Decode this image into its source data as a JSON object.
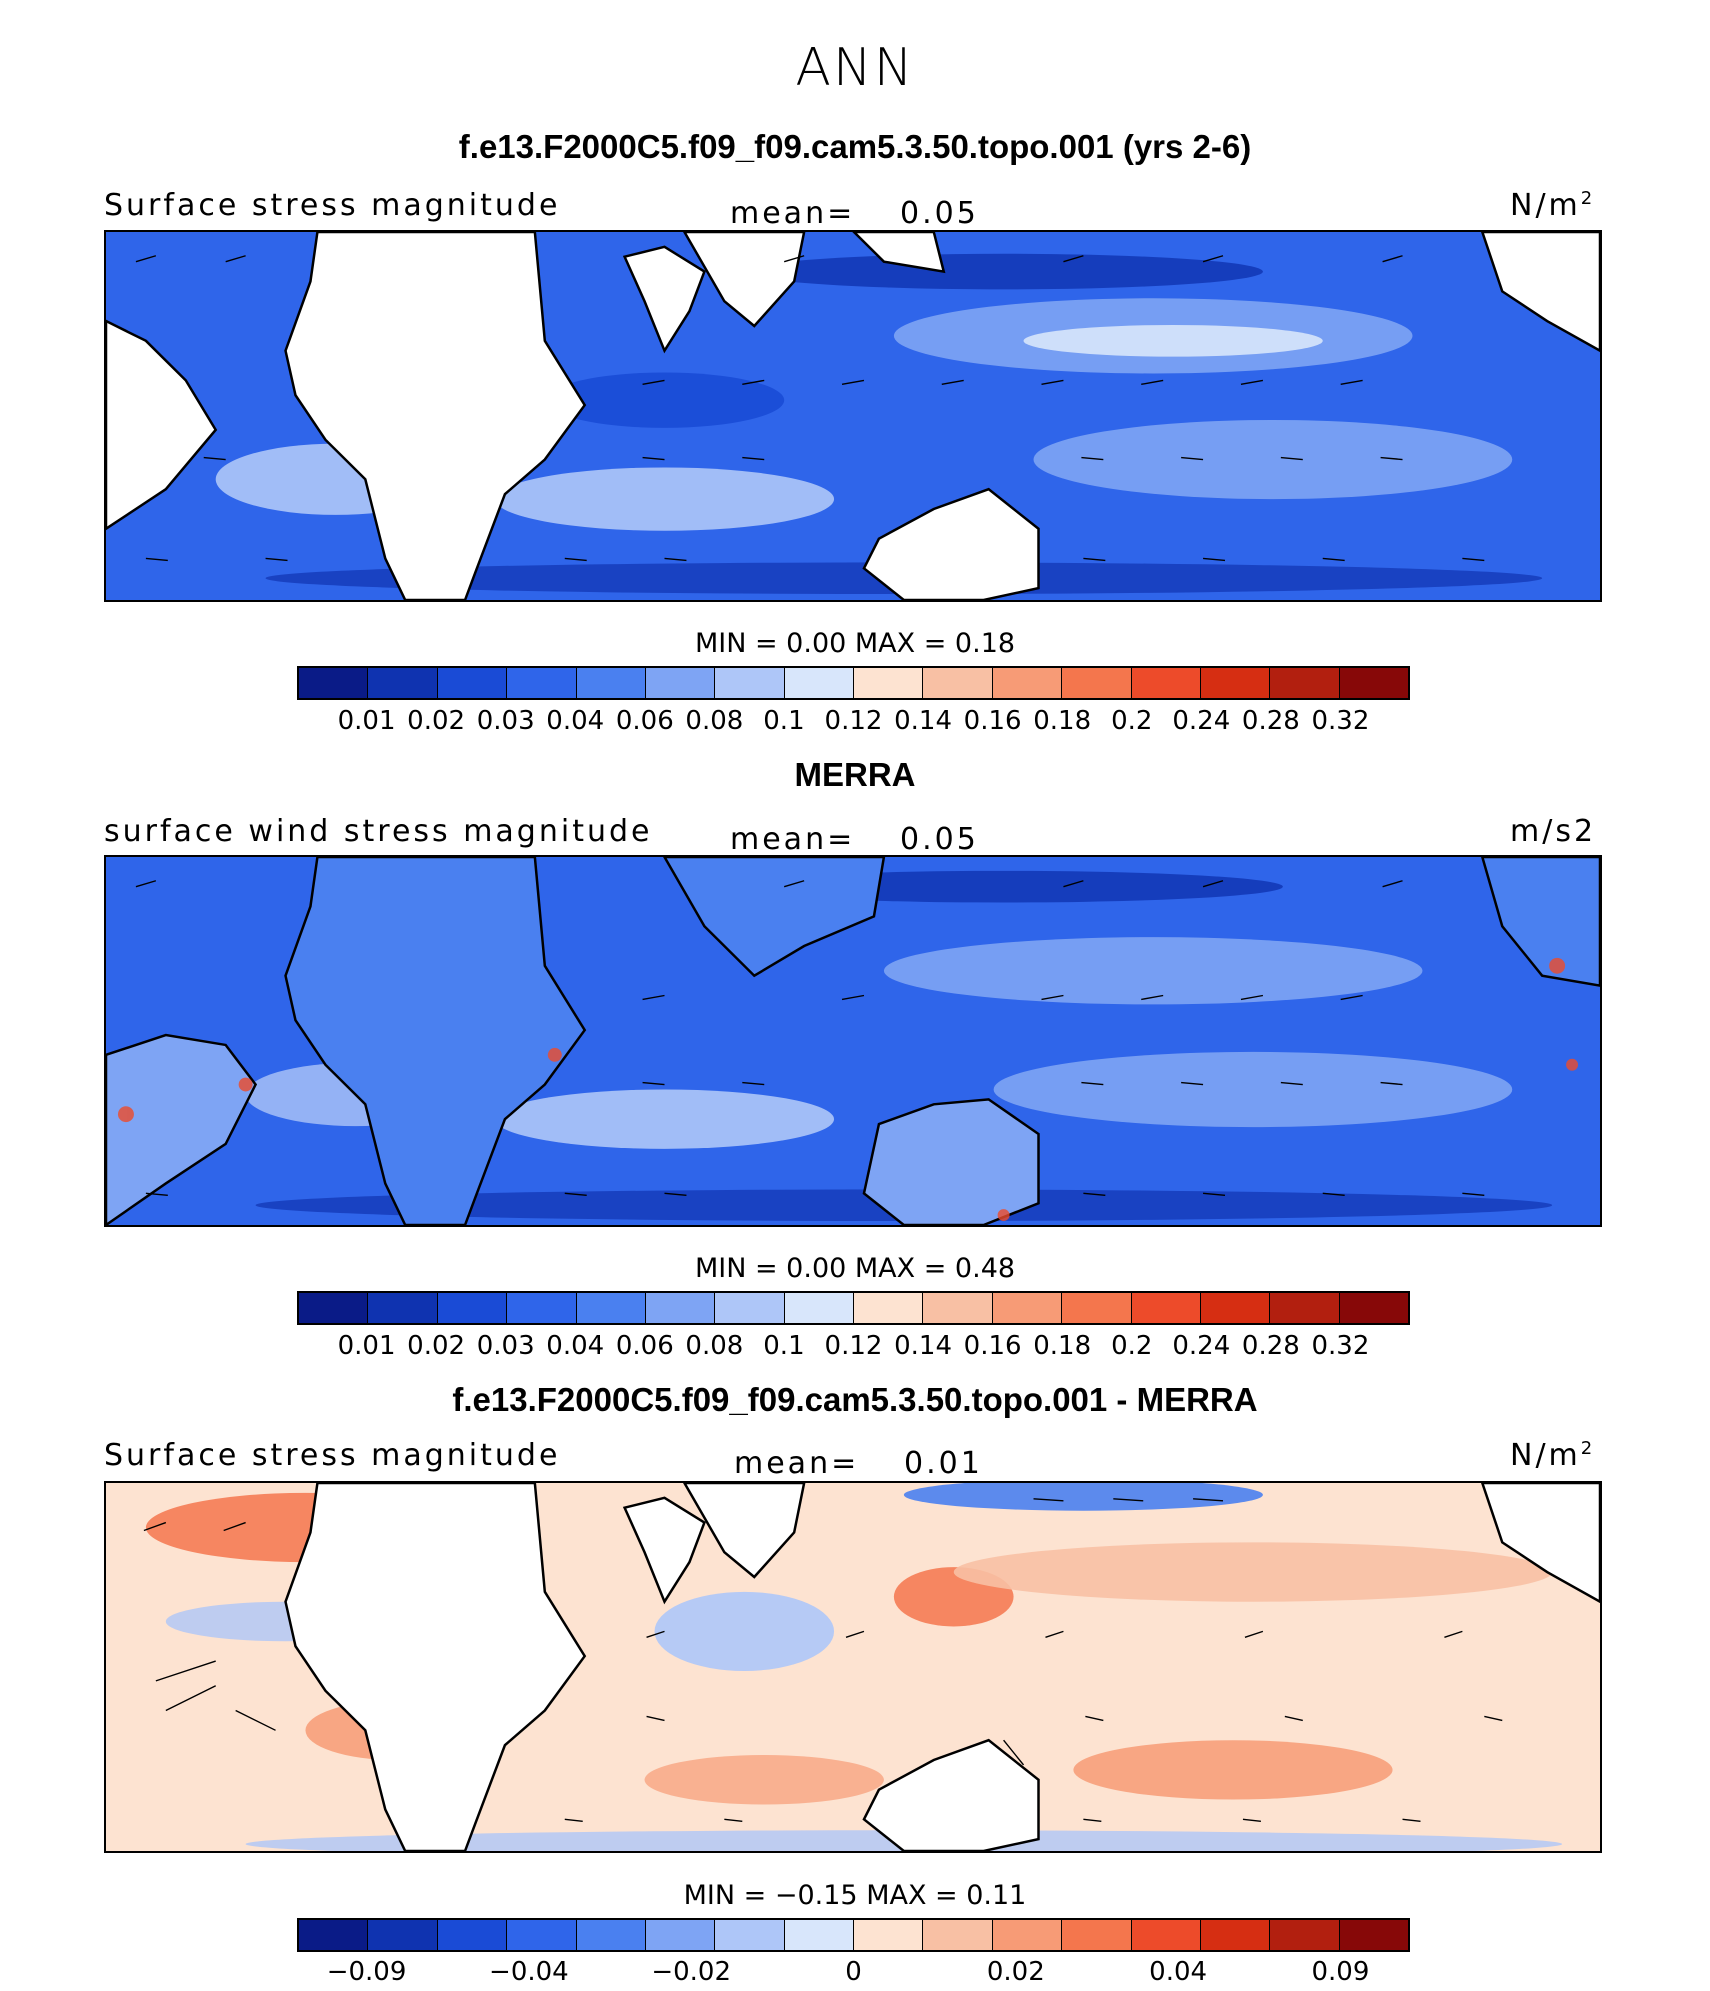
{
  "title": "ANN",
  "colors": {
    "levels": [
      "#0a1b87",
      "#0f33b0",
      "#1a4bd6",
      "#2f65ea",
      "#4a80f0",
      "#7ea4f4",
      "#aec6f8",
      "#d8e6fb",
      "#fde3d1",
      "#f8c0a4",
      "#f79b76",
      "#f4764d",
      "#ed4b2a",
      "#d62e12",
      "#b21f0f",
      "#870808"
    ],
    "land": "#ffffff",
    "coast": "#000000"
  },
  "panels": [
    {
      "title": "f.e13.F2000C5.f09_f09.cam5.3.50.topo.001 (yrs 2-6)",
      "left_label": "Surface stress magnitude",
      "mean_label": "mean=",
      "mean_value": "0.05",
      "unit_base": "N/m",
      "unit_sup": "2",
      "stats": "MIN =     0.00  MAX =     0.18",
      "ticks": [
        "0.01",
        "0.02",
        "0.03",
        "0.04",
        "0.06",
        "0.08",
        "0.1",
        "0.12",
        "0.14",
        "0.16",
        "0.18",
        "0.2",
        "0.24",
        "0.28",
        "0.32"
      ]
    },
    {
      "title": "MERRA",
      "left_label": "surface wind stress magnitude",
      "mean_label": "mean=",
      "mean_value": "0.05",
      "unit_base": "m/s2",
      "unit_sup": "",
      "stats": "MIN =     0.00  MAX =     0.48",
      "ticks": [
        "0.01",
        "0.02",
        "0.03",
        "0.04",
        "0.06",
        "0.08",
        "0.1",
        "0.12",
        "0.14",
        "0.16",
        "0.18",
        "0.2",
        "0.24",
        "0.28",
        "0.32"
      ]
    },
    {
      "title": "f.e13.F2000C5.f09_f09.cam5.3.50.topo.001 - MERRA",
      "left_label": "Surface stress magnitude",
      "mean_label": "mean=",
      "mean_value": "0.01",
      "unit_base": "N/m",
      "unit_sup": "2",
      "stats": "MIN =   −0.15  MAX =     0.11",
      "ticks": [
        "−0.09",
        "",
        "−0.04",
        "",
        "−0.02",
        "",
        "0",
        "",
        "0.02",
        "",
        "0.04",
        "",
        "0.09"
      ]
    }
  ]
}
